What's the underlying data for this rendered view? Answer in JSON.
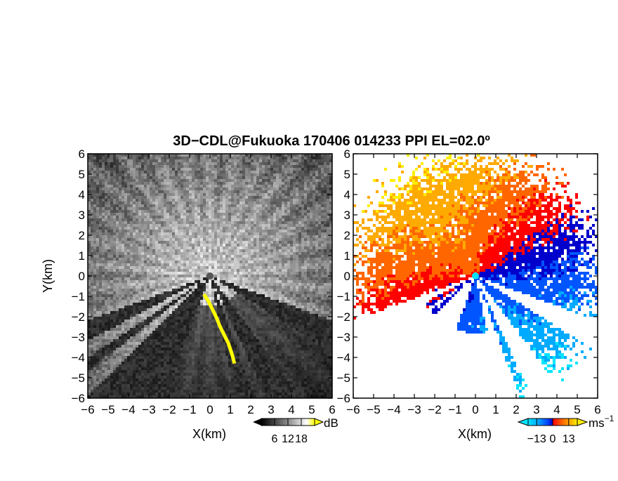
{
  "figure": {
    "title": "3D−CDL@Fukuoka 170406 014233 PPI EL=02.0º"
  },
  "chart_data": [
    {
      "type": "heatmap",
      "quantity": "reflectivity",
      "xlabel": "X(km)",
      "ylabel": "Y(km)",
      "xlim": [
        -6,
        6
      ],
      "ylim": [
        -6,
        6
      ],
      "x_ticks": [
        -6,
        -5,
        -4,
        -3,
        -2,
        -1,
        0,
        1,
        2,
        3,
        4,
        5,
        6
      ],
      "y_ticks": [
        -6,
        -5,
        -4,
        -3,
        -2,
        -1,
        0,
        1,
        2,
        3,
        4,
        5,
        6
      ],
      "x_tick_labels": [
        "−6",
        "−5",
        "−4",
        "−3",
        "−2",
        "−1",
        "0",
        "1",
        "2",
        "3",
        "4",
        "5",
        "6"
      ],
      "y_tick_labels": [
        "−6",
        "−5",
        "−4",
        "−3",
        "−2",
        "−1",
        "0",
        "1",
        "2",
        "3",
        "4",
        "5",
        "6"
      ],
      "colorbar": {
        "unit": "dB",
        "ticks": [
          6,
          12,
          18
        ],
        "tick_labels": [
          "6",
          "12",
          "18"
        ],
        "range": [
          0,
          24
        ],
        "colors": [
          "#000000",
          "#ffffff",
          "#ffff00"
        ]
      },
      "radar_center": [
        0,
        0
      ],
      "blocked_sectors_deg": [
        [
          110,
          122
        ],
        [
          143,
          155
        ],
        [
          160,
          168
        ],
        [
          200,
          225
        ],
        [
          232,
          236
        ],
        [
          242,
          250
        ]
      ],
      "yellow_echo_trace": [
        [
          -0.3,
          -0.9
        ],
        [
          -0.1,
          -1.2
        ],
        [
          0.1,
          -1.6
        ],
        [
          0.3,
          -2.0
        ],
        [
          0.5,
          -2.5
        ],
        [
          0.7,
          -2.9
        ],
        [
          0.9,
          -3.3
        ],
        [
          1.0,
          -3.6
        ],
        [
          1.1,
          -3.9
        ],
        [
          1.2,
          -4.3
        ]
      ]
    },
    {
      "type": "heatmap",
      "quantity": "doppler_velocity",
      "xlabel": "X(km)",
      "ylabel": "",
      "xlim": [
        -6,
        6
      ],
      "ylim": [
        -6,
        6
      ],
      "x_ticks": [
        -6,
        -5,
        -4,
        -3,
        -2,
        -1,
        0,
        1,
        2,
        3,
        4,
        5,
        6
      ],
      "y_ticks": [
        -6,
        -5,
        -4,
        -3,
        -2,
        -1,
        0,
        1,
        2,
        3,
        4,
        5,
        6
      ],
      "x_tick_labels": [
        "−6",
        "−5",
        "−4",
        "−3",
        "−2",
        "−1",
        "0",
        "1",
        "2",
        "3",
        "4",
        "5",
        "6"
      ],
      "y_tick_labels": [
        "−6",
        "−5",
        "−4",
        "−3",
        "−2",
        "−1",
        "0",
        "1",
        "2",
        "3",
        "4",
        "5",
        "6"
      ],
      "colorbar": {
        "unit": "ms",
        "unit_exponent": "−1",
        "ticks": [
          -13,
          0,
          13
        ],
        "tick_labels": [
          "−13",
          "0",
          "13"
        ],
        "range": [
          -20,
          20
        ],
        "colors": [
          "#00e5ff",
          "#00aaff",
          "#0055ff",
          "#0000cc",
          "#ff0000",
          "#ff6600",
          "#ffaa00",
          "#ffee00"
        ]
      },
      "radar_center": [
        0,
        0
      ],
      "blocked_sectors_deg": [
        [
          110,
          122
        ],
        [
          143,
          155
        ],
        [
          160,
          168
        ],
        [
          200,
          225
        ],
        [
          232,
          236
        ],
        [
          242,
          250
        ]
      ],
      "velocity_pattern": "positive (orange/yellow) in the north-west half, negative (blue) in the south-east half",
      "echo_range_km": 6.3
    }
  ]
}
